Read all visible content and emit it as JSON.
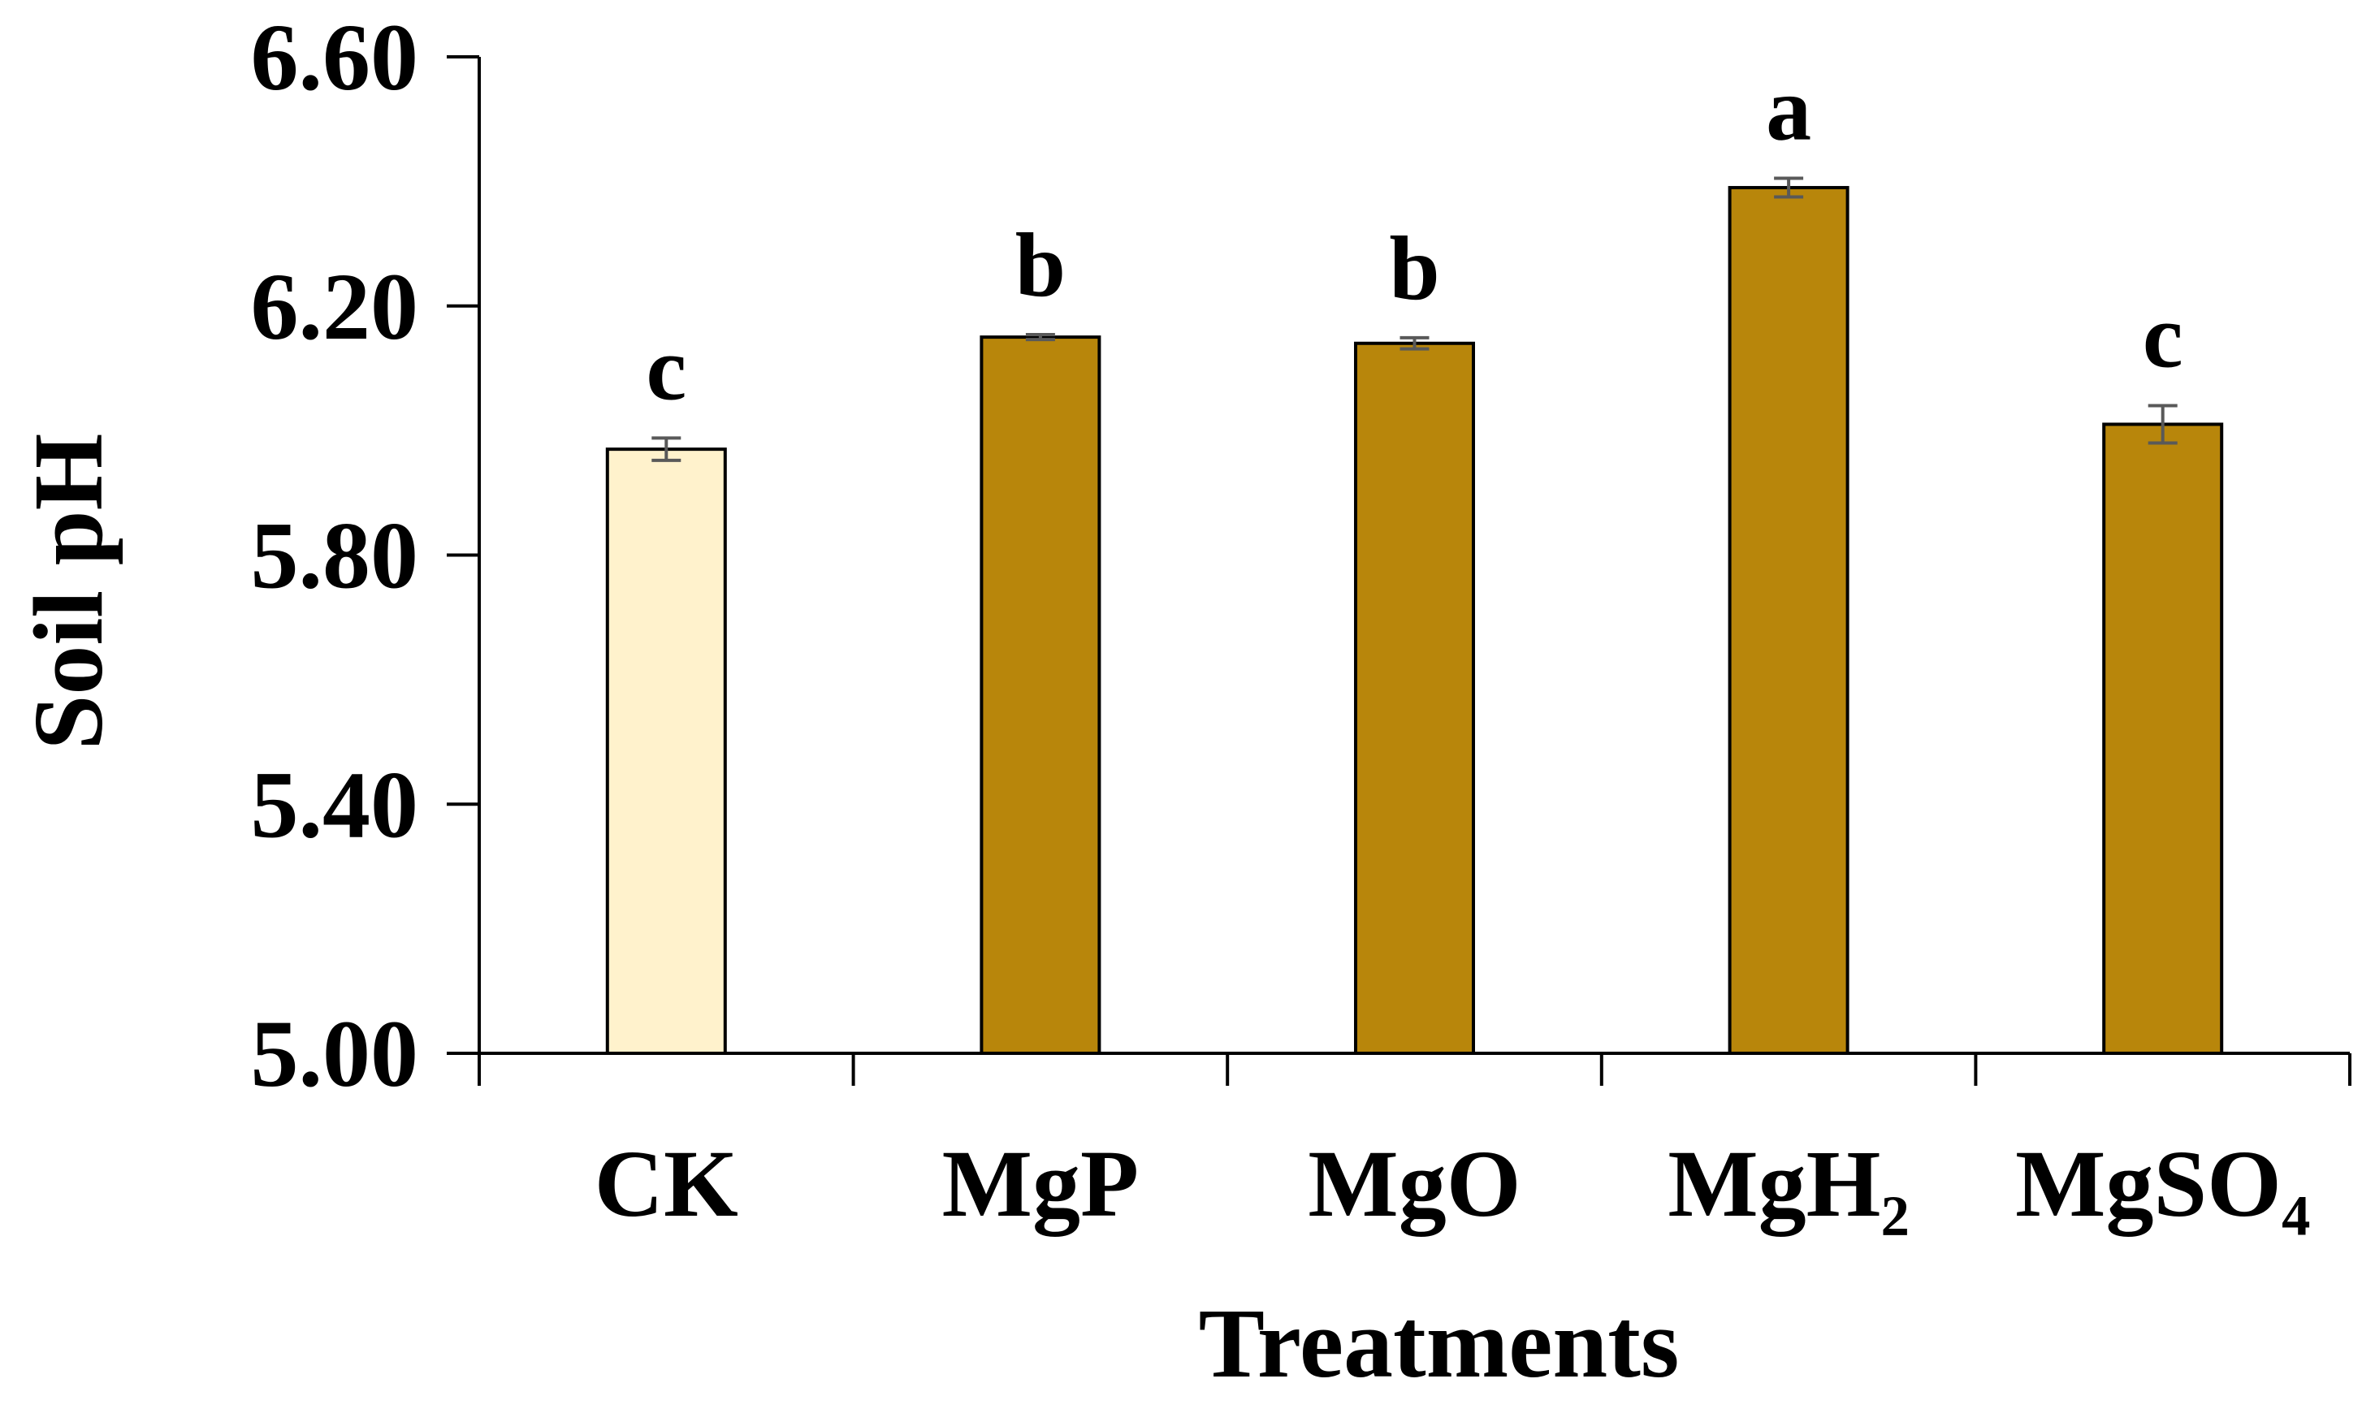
{
  "chart_data": {
    "type": "bar",
    "title": "",
    "xlabel": "Treatments",
    "ylabel": "Soil pH",
    "ylim": [
      5.0,
      6.6
    ],
    "yticks": [
      5.0,
      5.4,
      5.8,
      6.2,
      6.6
    ],
    "ytick_labels": [
      "5.00",
      "5.40",
      "5.80",
      "6.20",
      "6.60"
    ],
    "grid": false,
    "categories": [
      "CK",
      "MgP",
      "MgO",
      "MgH₂",
      "MgSO₄"
    ],
    "values": [
      5.97,
      6.15,
      6.14,
      6.39,
      6.01
    ],
    "errors": [
      0.018,
      0.004,
      0.009,
      0.015,
      0.03
    ],
    "significance_letters": [
      "c",
      "b",
      "b",
      "a",
      "c"
    ],
    "bar_colors": [
      "#FFF2CC",
      "#B8860B",
      "#B8860B",
      "#B8860B",
      "#B8860B"
    ],
    "error_bar_color": "#595959"
  }
}
